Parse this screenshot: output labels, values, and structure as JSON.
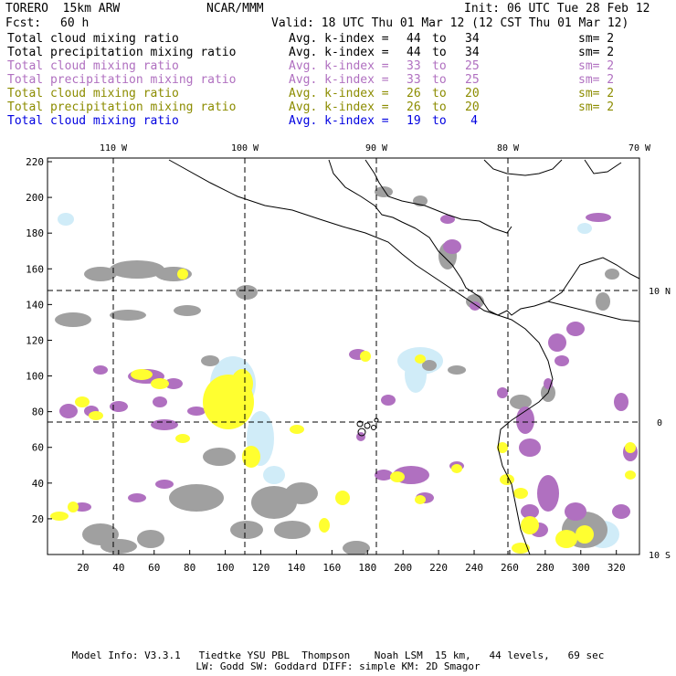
{
  "header": {
    "model": "TORERO  15km ARW",
    "org": "NCAR/MMM",
    "init": "Init: 06 UTC Tue 28 Feb 12",
    "fcst_label": "Fcst:",
    "fcst_value": "60 h",
    "valid": "Valid: 18 UTC Thu 01 Mar 12 (12 CST Thu 01 Mar 12)"
  },
  "legend": [
    {
      "field": "Total cloud mixing ratio",
      "kindex": "Avg. k-index =",
      "from": "44",
      "to_word": "to",
      "to": "34",
      "sm": "sm= 2",
      "color": "#000000"
    },
    {
      "field": "Total precipitation mixing ratio",
      "kindex": "Avg. k-index =",
      "from": "44",
      "to_word": "to",
      "to": "34",
      "sm": "sm= 2",
      "color": "#000000"
    },
    {
      "field": "Total cloud mixing ratio",
      "kindex": "Avg. k-index =",
      "from": "33",
      "to_word": "to",
      "to": "25",
      "sm": "sm= 2",
      "color": "#b070c0"
    },
    {
      "field": "Total precipitation mixing ratio",
      "kindex": "Avg. k-index =",
      "from": "33",
      "to_word": "to",
      "to": "25",
      "sm": "sm= 2",
      "color": "#b070c0"
    },
    {
      "field": "Total cloud mixing ratio",
      "kindex": "Avg. k-index =",
      "from": "26",
      "to_word": "to",
      "to": "20",
      "sm": "sm= 2",
      "color": "#8c8c00"
    },
    {
      "field": "Total precipitation mixing ratio",
      "kindex": "Avg. k-index =",
      "from": "26",
      "to_word": "to",
      "to": "20",
      "sm": "sm= 2",
      "color": "#8c8c00"
    },
    {
      "field": "Total cloud mixing ratio",
      "kindex": "Avg. k-index =",
      "from": "19",
      "to_word": "to",
      "to": "4",
      "sm": "",
      "color": "#0000e0"
    }
  ],
  "map": {
    "top_lon_labels": [
      "110 W",
      "100 W",
      "90 W",
      "80 W",
      "70 W"
    ],
    "right_lat_labels": [
      "10 N",
      "0",
      "10 S"
    ],
    "y_ticks": [
      "20",
      "40",
      "60",
      "80",
      "100",
      "120",
      "140",
      "160",
      "180",
      "200",
      "220"
    ],
    "x_ticks": [
      "20",
      "40",
      "60",
      "80",
      "100",
      "120",
      "140",
      "160",
      "180",
      "200",
      "220",
      "240",
      "260",
      "280",
      "300",
      "320"
    ],
    "colors": {
      "gray": "#a0a0a0",
      "magenta": "#b070c0",
      "yellow": "#ffff30",
      "lightblue": "#d0ecf8",
      "coast": "#000000"
    }
  },
  "footer": {
    "line1": "Model Info: V3.3.1   Tiedtke YSU PBL  Thompson    Noah LSM  15 km,   44 levels,   69 sec",
    "line2": "LW: Godd SW: Goddard DIFF: simple KM: 2D Smagor"
  }
}
